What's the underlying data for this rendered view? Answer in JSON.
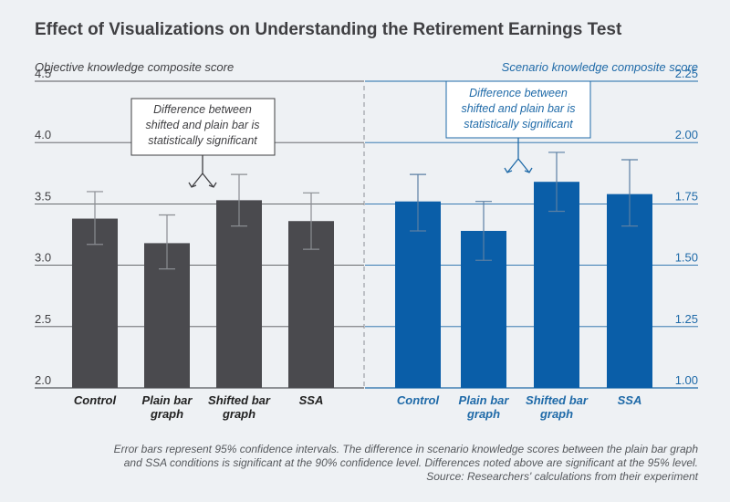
{
  "title": "Effect of Visualizations on Understanding the Retirement Earnings Test",
  "colors": {
    "left_bar": "#4a4a4e",
    "right_bar": "#0a5ea8",
    "left_text": "#3f3f42",
    "right_text": "#1f6aa8",
    "background": "#eef1f4"
  },
  "chart_data": [
    {
      "type": "bar",
      "ylabel": "Objective knowledge composite score",
      "ylim": [
        2.0,
        4.5
      ],
      "yticks": [
        "2.0",
        "2.5",
        "3.0",
        "3.5",
        "4.0",
        "4.5"
      ],
      "categories": [
        [
          "Control"
        ],
        [
          "Plain bar",
          "graph"
        ],
        [
          "Shifted bar",
          "graph"
        ],
        [
          "SSA"
        ]
      ],
      "values": [
        3.38,
        3.18,
        3.53,
        3.36
      ],
      "ci_low": [
        3.17,
        2.97,
        3.32,
        3.13
      ],
      "ci_high": [
        3.6,
        3.41,
        3.74,
        3.59
      ],
      "annotation": [
        "Difference between",
        "shifted and plain bar is",
        "statistically significant"
      ]
    },
    {
      "type": "bar",
      "ylabel": "Scenario knowledge composite score",
      "ylim": [
        1.0,
        2.25
      ],
      "yticks": [
        "1.00",
        "1.25",
        "1.50",
        "1.75",
        "2.00",
        "2.25"
      ],
      "categories": [
        [
          "Control"
        ],
        [
          "Plain bar",
          "graph"
        ],
        [
          "Shifted bar",
          "graph"
        ],
        [
          "SSA"
        ]
      ],
      "values": [
        1.76,
        1.64,
        1.84,
        1.79
      ],
      "ci_low": [
        1.64,
        1.52,
        1.72,
        1.66
      ],
      "ci_high": [
        1.87,
        1.76,
        1.96,
        1.93
      ],
      "annotation": [
        "Difference between",
        "shifted and plain bar is",
        "statistically significant"
      ]
    }
  ],
  "notes": [
    "Error bars represent 95% confidence intervals. The difference in scenario knowledge scores between the plain bar graph",
    "and SSA conditions is significant at the 90% confidence level. Differences noted above are significant at the 95% level.",
    "Source: Researchers' calculations from their experiment"
  ]
}
